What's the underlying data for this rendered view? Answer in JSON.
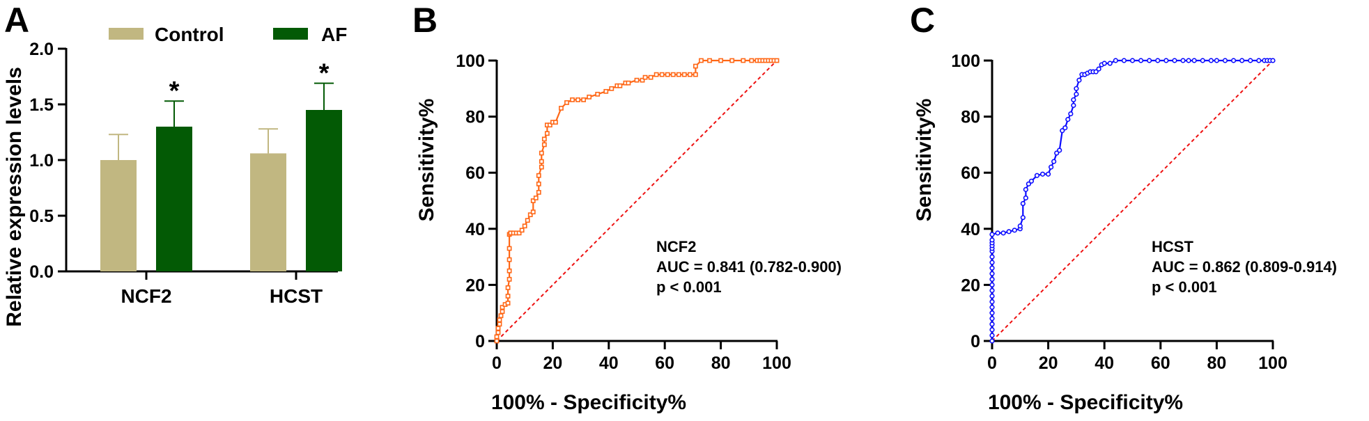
{
  "colors": {
    "control": "#c1b781",
    "af": "#035a05",
    "ncf2_roc": "#ff6716",
    "hcst_roc": "#0a0aff",
    "reference": "#ee1010"
  },
  "panels": {
    "a": {
      "letter": "A"
    },
    "b": {
      "letter": "B"
    },
    "c": {
      "letter": "C"
    }
  },
  "chart_data": [
    {
      "id": "a",
      "type": "bar",
      "ylabel": "Relative expression levels",
      "ylim": [
        0,
        2.0
      ],
      "yticks": [
        "0.0",
        "0.5",
        "1.0",
        "1.5",
        "2.0"
      ],
      "categories": [
        "NCF2",
        "HCST"
      ],
      "legend": {
        "placement": "top",
        "entries": [
          "Control",
          "AF"
        ]
      },
      "series": [
        {
          "name": "Control",
          "values": [
            1.0,
            1.06
          ],
          "error": [
            0.23,
            0.22
          ],
          "significance": [
            "",
            ""
          ]
        },
        {
          "name": "AF",
          "values": [
            1.3,
            1.45
          ],
          "error": [
            0.23,
            0.24
          ],
          "significance": [
            "*",
            "*"
          ]
        }
      ]
    },
    {
      "id": "b",
      "type": "line",
      "xlabel": "100% - Specificity%",
      "ylabel": "Sensitivity%",
      "xlim": [
        0,
        100
      ],
      "ylim": [
        0,
        100
      ],
      "xticks": [
        "0",
        "20",
        "40",
        "60",
        "80",
        "100"
      ],
      "yticks": [
        "0",
        "20",
        "40",
        "60",
        "80",
        "100"
      ],
      "marker": "square",
      "annotation": [
        "NCF2",
        "AUC = 0.841 (0.782-0.900)",
        "p < 0.001"
      ],
      "series": [
        {
          "x": [
            0,
            0,
            0.5,
            0.5,
            1,
            1,
            1.5,
            2,
            2,
            3,
            4,
            4,
            4,
            4.5,
            4.5,
            4.5,
            4.5,
            4.5,
            5,
            5,
            5,
            6,
            7,
            8,
            9,
            10,
            11,
            12,
            13,
            13,
            14,
            15,
            15,
            15,
            16,
            16,
            16,
            17,
            17,
            18,
            18,
            19,
            20,
            21,
            23,
            25,
            27,
            29,
            31,
            33,
            36,
            39,
            41,
            43,
            44,
            46,
            47,
            50,
            52,
            53,
            55,
            57,
            59,
            61,
            63,
            65,
            67,
            69,
            71,
            71,
            73,
            76,
            80,
            84,
            88,
            91,
            93,
            94,
            95,
            96,
            97,
            98,
            99,
            100
          ],
          "y": [
            0,
            1.5,
            3,
            4.5,
            6,
            7.5,
            9,
            10.5,
            12,
            13,
            13.5,
            16,
            19,
            22,
            25,
            29,
            33,
            38,
            38.5,
            38.5,
            38.5,
            38.5,
            38.5,
            38.5,
            39.5,
            41,
            43,
            45,
            46,
            50,
            51,
            53,
            56,
            59,
            62,
            64,
            67,
            70,
            72,
            74,
            77,
            77,
            78,
            78,
            83,
            85,
            86,
            86,
            86,
            87,
            88,
            89,
            90,
            91,
            91,
            92,
            92,
            93,
            93,
            94,
            94,
            95,
            95,
            95,
            95,
            95,
            95,
            95,
            95,
            98,
            100,
            100,
            100,
            100,
            100,
            100,
            100,
            100,
            100,
            100,
            100,
            100,
            100,
            100
          ]
        }
      ]
    },
    {
      "id": "c",
      "type": "line",
      "xlabel": "100% - Specificity%",
      "ylabel": "Sensitivity%",
      "xlim": [
        0,
        100
      ],
      "ylim": [
        0,
        100
      ],
      "xticks": [
        "0",
        "20",
        "40",
        "60",
        "80",
        "100"
      ],
      "yticks": [
        "0",
        "20",
        "40",
        "60",
        "80",
        "100"
      ],
      "marker": "circle",
      "annotation": [
        "HCST",
        "AUC = 0.862 (0.809-0.914)",
        "p < 0.001"
      ],
      "series": [
        {
          "x": [
            0,
            0,
            0,
            0,
            0,
            0,
            0,
            0,
            0,
            0,
            0,
            0,
            0,
            0,
            0,
            0,
            0,
            0,
            0,
            0,
            0,
            0,
            2,
            4,
            6,
            8,
            10,
            10,
            11,
            11,
            12,
            12,
            13,
            14,
            16,
            18,
            20,
            21,
            22,
            23,
            24,
            25,
            26,
            27,
            28,
            29,
            29,
            30,
            30,
            31,
            32,
            33,
            34,
            35,
            36,
            37,
            38,
            39,
            40,
            42,
            44,
            47,
            50,
            53,
            56,
            59,
            62,
            65,
            68,
            70,
            72,
            75,
            78,
            80,
            83,
            86,
            89,
            92,
            95,
            97,
            98,
            99,
            100
          ],
          "y": [
            0,
            2,
            4,
            6,
            8,
            10,
            12,
            14,
            16,
            18,
            20,
            22,
            24,
            26,
            28,
            30,
            32,
            33,
            34,
            35,
            36,
            38,
            38.5,
            38.5,
            39,
            39.5,
            40,
            41,
            44,
            49,
            51,
            54,
            56,
            57,
            59,
            59.5,
            59.5,
            62,
            64,
            67,
            68,
            75,
            76,
            79,
            81,
            84,
            86,
            88,
            90,
            93,
            95,
            95,
            95.5,
            96,
            96,
            96,
            97,
            98.5,
            99,
            99,
            100,
            100,
            100,
            100,
            100,
            100,
            100,
            100,
            100,
            100,
            100,
            100,
            100,
            100,
            100,
            100,
            100,
            100,
            100,
            100,
            100,
            100,
            100
          ]
        }
      ]
    }
  ]
}
